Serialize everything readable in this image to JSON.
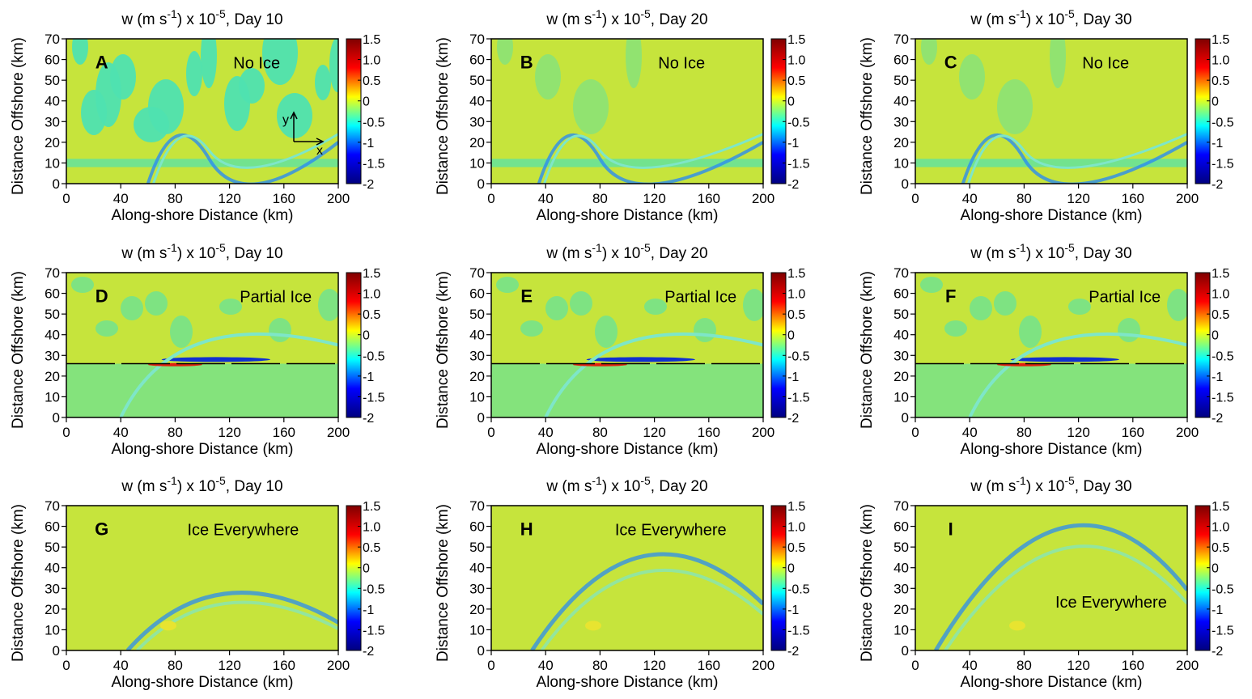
{
  "chart_data": [
    {
      "type": "heatmap",
      "title": [
        "w (m s",
        "-1",
        ") x 10",
        "-5",
        ", Day 10"
      ],
      "panel": "A",
      "annotation": "No Ice",
      "axis_arrows": {
        "x": "x",
        "y": "y"
      },
      "xlabel": "Along-shore Distance (km)",
      "ylabel": "Distance Offshore (km)",
      "xlim": [
        0,
        200
      ],
      "ylim": [
        0,
        70
      ],
      "xticks": [
        0,
        40,
        80,
        120,
        160,
        200
      ],
      "yticks": [
        0,
        10,
        20,
        30,
        40,
        50,
        60,
        70
      ],
      "clim": [
        -2,
        1.5
      ],
      "cticks": [
        1.5,
        {
          "value": 1,
          "label": "1.0"
        },
        0.5,
        0,
        -0.5,
        -1,
        -1.5,
        -2
      ],
      "colormap": [
        "#7f0000",
        "#ff0000",
        "#ffff00",
        "#00ffff",
        "#0000ff",
        "#00007f"
      ]
    },
    {
      "type": "heatmap",
      "title": [
        "w (m s",
        "-1",
        ") x 10",
        "-5",
        ", Day 20"
      ],
      "panel": "B",
      "annotation": "No Ice",
      "xlabel": "Along-shore Distance (km)",
      "ylabel": "Distance Offshore (km)",
      "xlim": [
        0,
        200
      ],
      "ylim": [
        0,
        70
      ],
      "xticks": [
        0,
        40,
        80,
        120,
        160,
        200
      ],
      "yticks": [
        0,
        10,
        20,
        30,
        40,
        50,
        60,
        70
      ],
      "clim": [
        -2,
        1.5
      ],
      "cticks": [
        1.5,
        {
          "value": 1,
          "label": "1.0"
        },
        0.5,
        0,
        -0.5,
        -1,
        -1.5,
        -2
      ],
      "colormap": [
        "#7f0000",
        "#ff0000",
        "#ffff00",
        "#00ffff",
        "#0000ff",
        "#00007f"
      ]
    },
    {
      "type": "heatmap",
      "title": [
        "w (m s",
        "-1",
        ") x 10",
        "-5",
        ", Day 30"
      ],
      "panel": "C",
      "annotation": "No Ice",
      "xlabel": "Along-shore Distance (km)",
      "ylabel": "Distance Offshore (km)",
      "xlim": [
        0,
        200
      ],
      "ylim": [
        0,
        70
      ],
      "xticks": [
        0,
        40,
        80,
        120,
        160,
        200
      ],
      "yticks": [
        0,
        10,
        20,
        30,
        40,
        50,
        60,
        70
      ],
      "clim": [
        -2,
        1.5
      ],
      "cticks": [
        1.5,
        {
          "value": 1,
          "label": "1.0"
        },
        0.5,
        0,
        -0.5,
        -1,
        -1.5,
        -2
      ],
      "colormap": [
        "#7f0000",
        "#ff0000",
        "#ffff00",
        "#00ffff",
        "#0000ff",
        "#00007f"
      ]
    },
    {
      "type": "heatmap",
      "title": [
        "w (m s",
        "-1",
        ") x 10",
        "-5",
        ", Day 10"
      ],
      "panel": "D",
      "annotation": "Partial Ice",
      "ice_edge": 26,
      "xlabel": "Along-shore Distance (km)",
      "ylabel": "Distance Offshore (km)",
      "xlim": [
        0,
        200
      ],
      "ylim": [
        0,
        70
      ],
      "xticks": [
        0,
        40,
        80,
        120,
        160,
        200
      ],
      "yticks": [
        0,
        10,
        20,
        30,
        40,
        50,
        60,
        70
      ],
      "clim": [
        -2,
        1.5
      ],
      "cticks": [
        1.5,
        {
          "value": 1,
          "label": "1.0"
        },
        0.5,
        0,
        -0.5,
        -1,
        -1.5,
        -2
      ],
      "colormap": [
        "#7f0000",
        "#ff0000",
        "#ffff00",
        "#00ffff",
        "#0000ff",
        "#00007f"
      ]
    },
    {
      "type": "heatmap",
      "title": [
        "w (m s",
        "-1",
        ") x 10",
        "-5",
        ", Day 20"
      ],
      "panel": "E",
      "annotation": "Partial Ice",
      "ice_edge": 26,
      "xlabel": "Along-shore Distance (km)",
      "ylabel": "Distance Offshore (km)",
      "xlim": [
        0,
        200
      ],
      "ylim": [
        0,
        70
      ],
      "xticks": [
        0,
        40,
        80,
        120,
        160,
        200
      ],
      "yticks": [
        0,
        10,
        20,
        30,
        40,
        50,
        60,
        70
      ],
      "clim": [
        -2,
        1.5
      ],
      "cticks": [
        1.5,
        {
          "value": 1,
          "label": "1.0"
        },
        0.5,
        0,
        -0.5,
        -1,
        -1.5,
        -2
      ],
      "colormap": [
        "#7f0000",
        "#ff0000",
        "#ffff00",
        "#00ffff",
        "#0000ff",
        "#00007f"
      ]
    },
    {
      "type": "heatmap",
      "title": [
        "w (m s",
        "-1",
        ") x 10",
        "-5",
        ", Day 30"
      ],
      "panel": "F",
      "annotation": "Partial Ice",
      "ice_edge": 26,
      "xlabel": "Along-shore Distance (km)",
      "ylabel": "Distance Offshore (km)",
      "xlim": [
        0,
        200
      ],
      "ylim": [
        0,
        70
      ],
      "xticks": [
        0,
        40,
        80,
        120,
        160,
        200
      ],
      "yticks": [
        0,
        10,
        20,
        30,
        40,
        50,
        60,
        70
      ],
      "clim": [
        -2,
        1.5
      ],
      "cticks": [
        1.5,
        {
          "value": 1,
          "label": "1.0"
        },
        0.5,
        0,
        -0.5,
        -1,
        -1.5,
        -2
      ],
      "colormap": [
        "#7f0000",
        "#ff0000",
        "#ffff00",
        "#00ffff",
        "#0000ff",
        "#00007f"
      ]
    },
    {
      "type": "heatmap",
      "title": [
        "w (m s",
        "-1",
        ") x 10",
        "-5",
        ", Day 10"
      ],
      "panel": "G",
      "annotation": "Ice Everywhere",
      "xlabel": "Along-shore Distance (km)",
      "ylabel": "Distance Offshore (km)",
      "xlim": [
        0,
        200
      ],
      "ylim": [
        0,
        70
      ],
      "xticks": [
        0,
        40,
        80,
        120,
        160,
        200
      ],
      "yticks": [
        0,
        10,
        20,
        30,
        40,
        50,
        60,
        70
      ],
      "clim": [
        -2,
        1.5
      ],
      "cticks": [
        1.5,
        {
          "value": 1,
          "label": "1.0"
        },
        0.5,
        0,
        -0.5,
        -1,
        -1.5,
        -2
      ],
      "colormap": [
        "#7f0000",
        "#ff0000",
        "#ffff00",
        "#00ffff",
        "#0000ff",
        "#00007f"
      ]
    },
    {
      "type": "heatmap",
      "title": [
        "w (m s",
        "-1",
        ") x 10",
        "-5",
        ", Day 20"
      ],
      "panel": "H",
      "annotation": "Ice Everywhere",
      "xlabel": "Along-shore Distance (km)",
      "ylabel": "Distance Offshore (km)",
      "xlim": [
        0,
        200
      ],
      "ylim": [
        0,
        70
      ],
      "xticks": [
        0,
        40,
        80,
        120,
        160,
        200
      ],
      "yticks": [
        0,
        10,
        20,
        30,
        40,
        50,
        60,
        70
      ],
      "clim": [
        -2,
        1.5
      ],
      "cticks": [
        1.5,
        {
          "value": 1,
          "label": "1.0"
        },
        0.5,
        0,
        -0.5,
        -1,
        -1.5,
        -2
      ],
      "colormap": [
        "#7f0000",
        "#ff0000",
        "#ffff00",
        "#00ffff",
        "#0000ff",
        "#00007f"
      ]
    },
    {
      "type": "heatmap",
      "title": [
        "w (m s",
        "-1",
        ") x 10",
        "-5",
        ", Day 30"
      ],
      "panel": "I",
      "annotation": "Ice Everywhere",
      "xlabel": "Along-shore Distance (km)",
      "ylabel": "Distance Offshore (km)",
      "xlim": [
        0,
        200
      ],
      "ylim": [
        0,
        70
      ],
      "xticks": [
        0,
        40,
        80,
        120,
        160,
        200
      ],
      "yticks": [
        0,
        10,
        20,
        30,
        40,
        50,
        60,
        70
      ],
      "clim": [
        -2,
        1.5
      ],
      "cticks": [
        1.5,
        {
          "value": 1,
          "label": "1.0"
        },
        0.5,
        0,
        -0.5,
        -1,
        -1.5,
        -2
      ],
      "colormap": [
        "#7f0000",
        "#ff0000",
        "#ffff00",
        "#00ffff",
        "#0000ff",
        "#00007f"
      ]
    }
  ]
}
